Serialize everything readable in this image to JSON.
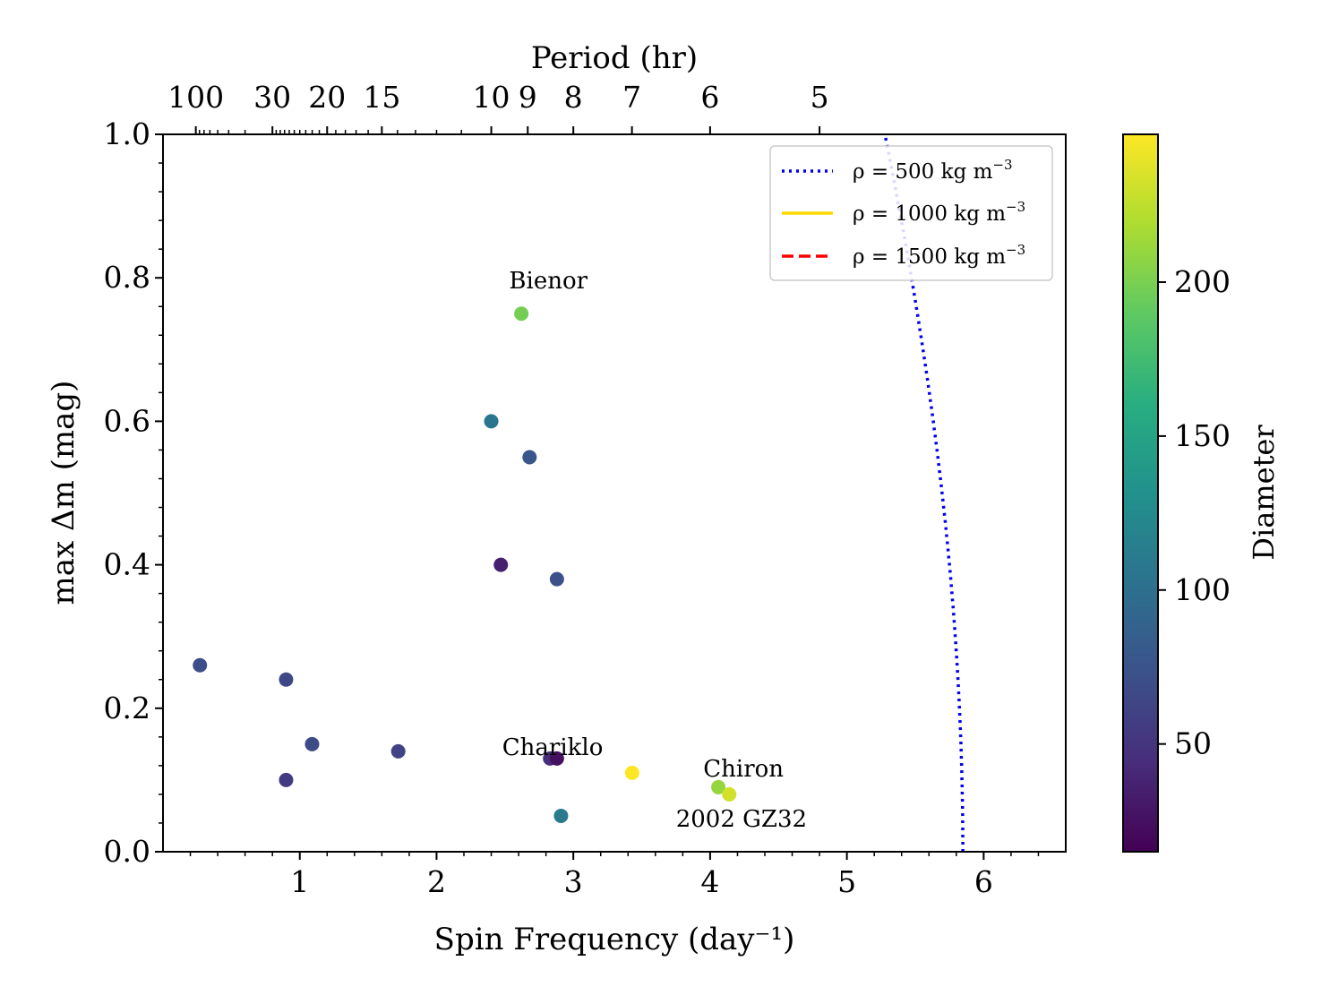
{
  "chart_data": {
    "type": "scatter",
    "xlabel": "Spin Frequency (day⁻¹)",
    "ylabel": "max Δm (mag)",
    "top_xlabel": "Period (hr)",
    "colorbar_label": "Diameter",
    "xlim": [
      0.0,
      6.6
    ],
    "ylim": [
      0.0,
      1.0
    ],
    "x_ticks": [
      1,
      2,
      3,
      4,
      5,
      6
    ],
    "y_ticks": [
      0.0,
      0.2,
      0.4,
      0.6,
      0.8,
      1.0
    ],
    "period_ticks": [
      {
        "label": "100",
        "hours": 100
      },
      {
        "label": "30",
        "hours": 30
      },
      {
        "label": "20",
        "hours": 20
      },
      {
        "label": "15",
        "hours": 15
      },
      {
        "label": "10",
        "hours": 10
      },
      {
        "label": "9",
        "hours": 9
      },
      {
        "label": "8",
        "hours": 8
      },
      {
        "label": "7",
        "hours": 7
      },
      {
        "label": "6",
        "hours": 6
      },
      {
        "label": "5",
        "hours": 5
      }
    ],
    "colorbar": {
      "min": 15,
      "max": 248,
      "ticks": [
        50,
        100,
        150,
        200
      ]
    },
    "points": [
      {
        "x": 0.27,
        "y": 0.26,
        "d": 70
      },
      {
        "x": 0.9,
        "y": 0.24,
        "d": 65
      },
      {
        "x": 1.09,
        "y": 0.15,
        "d": 68
      },
      {
        "x": 0.9,
        "y": 0.1,
        "d": 55
      },
      {
        "x": 1.72,
        "y": 0.14,
        "d": 62
      },
      {
        "x": 2.62,
        "y": 0.75,
        "d": 198
      },
      {
        "x": 2.4,
        "y": 0.6,
        "d": 105
      },
      {
        "x": 2.68,
        "y": 0.55,
        "d": 78
      },
      {
        "x": 2.47,
        "y": 0.4,
        "d": 35
      },
      {
        "x": 2.88,
        "y": 0.38,
        "d": 72
      },
      {
        "x": 2.83,
        "y": 0.13,
        "d": 45
      },
      {
        "x": 2.88,
        "y": 0.13,
        "d": 25
      },
      {
        "x": 2.91,
        "y": 0.05,
        "d": 110
      },
      {
        "x": 3.43,
        "y": 0.11,
        "d": 248
      },
      {
        "x": 4.06,
        "y": 0.09,
        "d": 210
      },
      {
        "x": 4.14,
        "y": 0.08,
        "d": 232
      }
    ],
    "annotations": [
      {
        "text": "Bienor",
        "x": 2.53,
        "y": 0.785
      },
      {
        "text": "Chariklo",
        "x": 2.48,
        "y": 0.135
      },
      {
        "text": "Chiron",
        "x": 3.95,
        "y": 0.105
      },
      {
        "text": "2002 GZ32",
        "x": 3.75,
        "y": 0.035
      }
    ],
    "series": [
      {
        "name": "ρ = 500 kg m⁻³",
        "style": "dotted",
        "color": "#0000ee",
        "density": 500
      },
      {
        "name": "ρ = 1000 kg m⁻³",
        "style": "solid",
        "color": "#ffd700",
        "density": 1000
      },
      {
        "name": "ρ = 1500 kg m⁻³",
        "style": "dashed",
        "color": "#ff0000",
        "density": 1500
      },
      {
        "name": "",
        "style": "dotted-thin",
        "color": "#000000",
        "density": 500
      },
      {
        "name": "",
        "style": "solid-thin",
        "color": "#000000",
        "density": 1000
      },
      {
        "name": "",
        "style": "dashed-thin",
        "color": "#000000",
        "density": 1500
      }
    ],
    "legend": {
      "position": "top-right",
      "items": [
        {
          "prefix": "ρ = 500 kg m",
          "sup": "−3"
        },
        {
          "prefix": "ρ = 1000 kg m",
          "sup": "−3"
        },
        {
          "prefix": "ρ = 1500 kg m",
          "sup": "−3"
        }
      ]
    }
  }
}
